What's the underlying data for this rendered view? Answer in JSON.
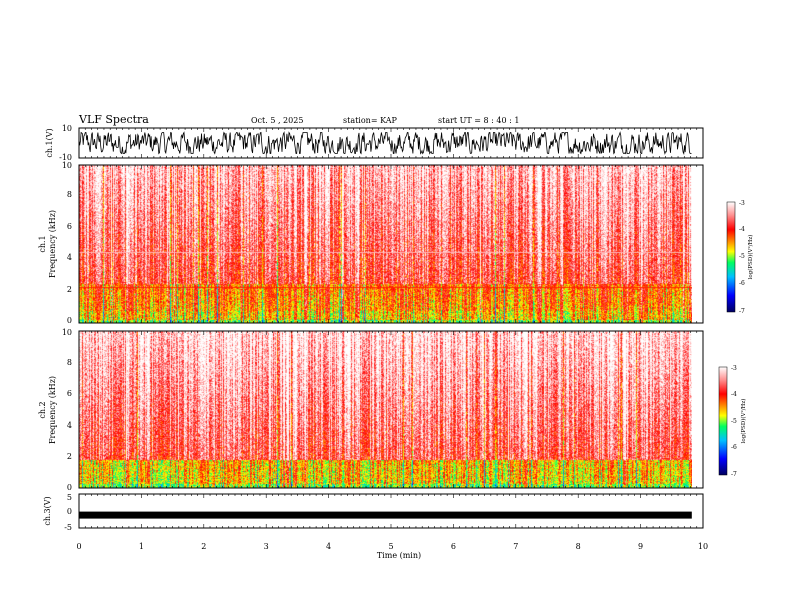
{
  "header": {
    "title": "VLF Spectra",
    "date": "Oct. 5 , 2025",
    "station": "station= KAP",
    "start_ut": "start  UT =   8 : 40 : 1"
  },
  "chart_data": [
    {
      "type": "line",
      "name": "ch1-waveform",
      "ylabel": "ch.1(V)",
      "ylim": [
        -10,
        10
      ],
      "yticks": [
        "10",
        "-10"
      ],
      "xlim": [
        0,
        10
      ],
      "data_end_min": 9.82,
      "description_values": "noisy waveform oscillating roughly between -6 and +6 V"
    },
    {
      "type": "heatmap",
      "name": "ch1-spectrogram",
      "ylabel_line1": "ch.1",
      "ylabel_line2": "Frequency (kHz)",
      "ylim": [
        0,
        10
      ],
      "yticks": [
        "0",
        "2",
        "4",
        "6",
        "8",
        "10"
      ],
      "xlim": [
        0,
        10
      ],
      "data_end_min": 9.82,
      "colorbar": {
        "label": "log(PSD)(V²/Hz)",
        "range": [
          -7,
          -3
        ],
        "ticks": [
          "-3",
          "-4",
          "-5",
          "-6",
          "-7"
        ]
      }
    },
    {
      "type": "heatmap",
      "name": "ch2-spectrogram",
      "ylabel_line1": "ch.2",
      "ylabel_line2": "Frequency (kHz)",
      "ylim": [
        0,
        10
      ],
      "yticks": [
        "0",
        "2",
        "4",
        "6",
        "8",
        "10"
      ],
      "xlim": [
        0,
        10
      ],
      "data_end_min": 9.82,
      "colorbar": {
        "label": "log(PSD)(V²/Hz)",
        "range": [
          -7,
          -3
        ],
        "ticks": [
          "-3",
          "-4",
          "-5",
          "-6",
          "-7"
        ]
      }
    },
    {
      "type": "line",
      "name": "ch3-waveform",
      "ylabel": "ch.3(V)",
      "ylim": [
        -5,
        5
      ],
      "yticks": [
        "5",
        "0",
        "-5"
      ],
      "xlim": [
        0,
        10
      ],
      "data_end_min": 9.82,
      "level": -1.2
    }
  ],
  "xaxis": {
    "label": "Time  (min)",
    "ticks": [
      "0",
      "1",
      "2",
      "3",
      "4",
      "5",
      "6",
      "7",
      "8",
      "9",
      "10"
    ]
  },
  "colors": {
    "low": "#000080",
    "mid": "#00ff00",
    "high": "#ff0000",
    "max": "#ffffff"
  }
}
